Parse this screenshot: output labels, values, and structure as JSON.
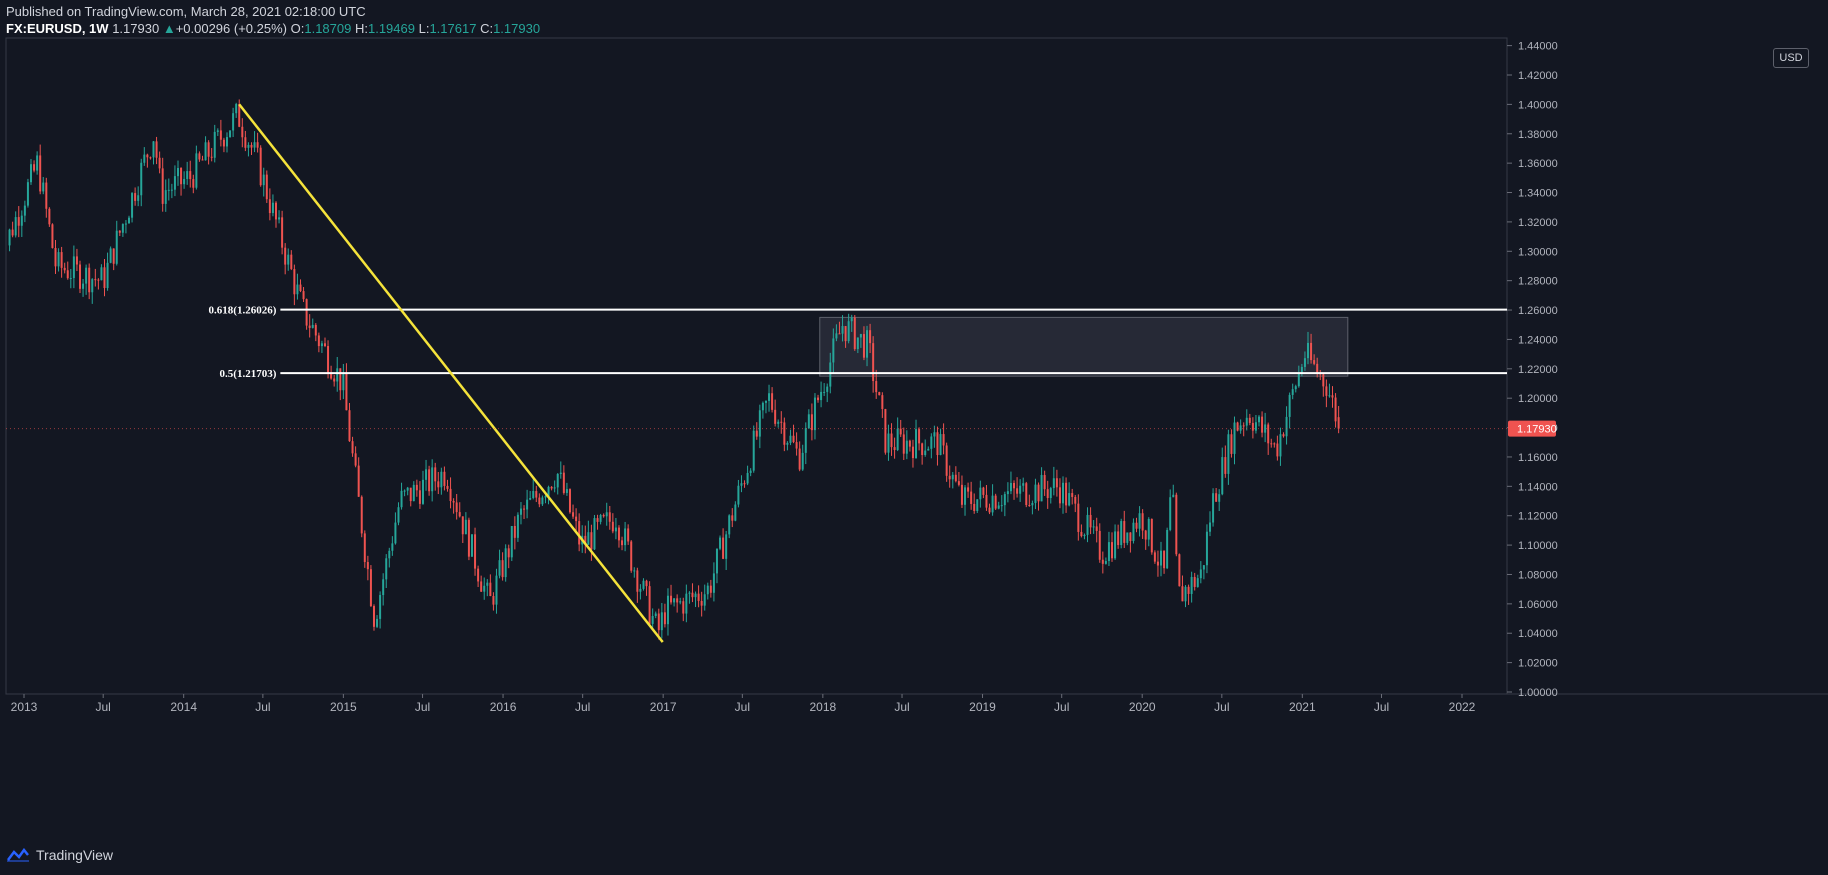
{
  "header": {
    "published": "Published on TradingView.com, March 28, 2021 02:18:00 UTC",
    "symbol": "FX:EURUSD, 1W",
    "last": "1.17930",
    "change": "+0.00296 (+0.25%)",
    "ohlc": {
      "o_label": "O:",
      "o": "1.18709",
      "h_label": "H:",
      "h": "1.19469",
      "l_label": "L:",
      "l": "1.17617",
      "c_label": "C:",
      "c": "1.17930"
    }
  },
  "currency_button": "USD",
  "footer": {
    "brand": "TradingView"
  },
  "colors": {
    "up": "#26a69a",
    "down": "#ef5350",
    "background": "#131722",
    "trendline": "#f5e33b",
    "fib": "#ffffff",
    "price_label_bg": "#ef5350"
  },
  "chart_data": {
    "type": "candlestick",
    "instrument": "FX:EURUSD",
    "interval": "1W",
    "ylim": [
      1.0,
      1.44
    ],
    "y_ticks": [
      "1.00000",
      "1.02000",
      "1.04000",
      "1.06000",
      "1.08000",
      "1.10000",
      "1.12000",
      "1.14000",
      "1.16000",
      "1.18000",
      "1.20000",
      "1.22000",
      "1.24000",
      "1.26000",
      "1.28000",
      "1.30000",
      "1.32000",
      "1.34000",
      "1.36000",
      "1.38000",
      "1.40000",
      "1.42000",
      "1.44000"
    ],
    "x_ticks": [
      {
        "label": "2013",
        "date": "2013-01-01"
      },
      {
        "label": "Jul",
        "date": "2013-07-01"
      },
      {
        "label": "2014",
        "date": "2014-01-01"
      },
      {
        "label": "Jul",
        "date": "2014-07-01"
      },
      {
        "label": "2015",
        "date": "2015-01-01"
      },
      {
        "label": "Jul",
        "date": "2015-07-01"
      },
      {
        "label": "2016",
        "date": "2016-01-01"
      },
      {
        "label": "Jul",
        "date": "2016-07-01"
      },
      {
        "label": "2017",
        "date": "2017-01-01"
      },
      {
        "label": "Jul",
        "date": "2017-07-01"
      },
      {
        "label": "2018",
        "date": "2018-01-01"
      },
      {
        "label": "Jul",
        "date": "2018-07-01"
      },
      {
        "label": "2019",
        "date": "2019-01-01"
      },
      {
        "label": "Jul",
        "date": "2019-07-01"
      },
      {
        "label": "2020",
        "date": "2020-01-01"
      },
      {
        "label": "Jul",
        "date": "2020-07-01"
      },
      {
        "label": "2021",
        "date": "2021-01-01"
      },
      {
        "label": "Jul",
        "date": "2021-07-01"
      },
      {
        "label": "2022",
        "date": "2022-01-01"
      }
    ],
    "series": [
      {
        "date": "2012-11-01",
        "close": 1.29
      },
      {
        "date": "2013-02-01",
        "close": 1.36
      },
      {
        "date": "2013-03-15",
        "close": 1.29
      },
      {
        "date": "2013-07-01",
        "close": 1.28
      },
      {
        "date": "2013-10-25",
        "close": 1.38
      },
      {
        "date": "2013-11-10",
        "close": 1.34
      },
      {
        "date": "2014-01-15",
        "close": 1.35
      },
      {
        "date": "2014-05-05",
        "close": 1.393
      },
      {
        "date": "2014-06-20",
        "close": 1.36
      },
      {
        "date": "2014-09-30",
        "close": 1.26
      },
      {
        "date": "2014-12-30",
        "close": 1.21
      },
      {
        "date": "2015-03-13",
        "close": 1.05
      },
      {
        "date": "2015-05-10",
        "close": 1.13
      },
      {
        "date": "2015-08-24",
        "close": 1.15
      },
      {
        "date": "2015-12-01",
        "close": 1.06
      },
      {
        "date": "2016-02-10",
        "close": 1.12
      },
      {
        "date": "2016-05-03",
        "close": 1.15
      },
      {
        "date": "2016-06-27",
        "close": 1.1
      },
      {
        "date": "2016-09-15",
        "close": 1.12
      },
      {
        "date": "2016-12-20",
        "close": 1.04
      },
      {
        "date": "2017-01-05",
        "close": 1.055
      },
      {
        "date": "2017-04-15",
        "close": 1.07
      },
      {
        "date": "2017-08-30",
        "close": 1.2
      },
      {
        "date": "2017-11-07",
        "close": 1.16
      },
      {
        "date": "2018-02-15",
        "close": 1.25
      },
      {
        "date": "2018-04-15",
        "close": 1.235
      },
      {
        "date": "2018-05-25",
        "close": 1.17
      },
      {
        "date": "2018-09-20",
        "close": 1.17
      },
      {
        "date": "2018-11-15",
        "close": 1.13
      },
      {
        "date": "2019-06-25",
        "close": 1.14
      },
      {
        "date": "2019-09-30",
        "close": 1.095
      },
      {
        "date": "2019-12-31",
        "close": 1.12
      },
      {
        "date": "2020-02-20",
        "close": 1.08
      },
      {
        "date": "2020-03-09",
        "close": 1.14
      },
      {
        "date": "2020-03-23",
        "close": 1.065
      },
      {
        "date": "2020-05-15",
        "close": 1.08
      },
      {
        "date": "2020-06-10",
        "close": 1.13
      },
      {
        "date": "2020-07-30",
        "close": 1.18
      },
      {
        "date": "2020-09-01",
        "close": 1.19
      },
      {
        "date": "2020-11-02",
        "close": 1.165
      },
      {
        "date": "2021-01-06",
        "close": 1.23
      },
      {
        "date": "2021-02-25",
        "close": 1.21
      },
      {
        "date": "2021-03-28",
        "close": 1.1793
      }
    ],
    "annotations": {
      "trendline": {
        "from": {
          "date": "2014-05-08",
          "price": 1.4
        },
        "to": {
          "date": "2016-12-31",
          "price": 1.034
        }
      },
      "fib_levels": [
        {
          "label": "0.618(1.26026)",
          "price": 1.26026,
          "from_date": "2014-08-10"
        },
        {
          "label": "0.5(1.21703)",
          "price": 1.21703,
          "from_date": "2014-08-10"
        }
      ],
      "zone": {
        "from_date": "2017-12-25",
        "to_date": "2021-04-15",
        "top": 1.255,
        "bottom": 1.215
      }
    },
    "last_price_label": "1.17930"
  }
}
